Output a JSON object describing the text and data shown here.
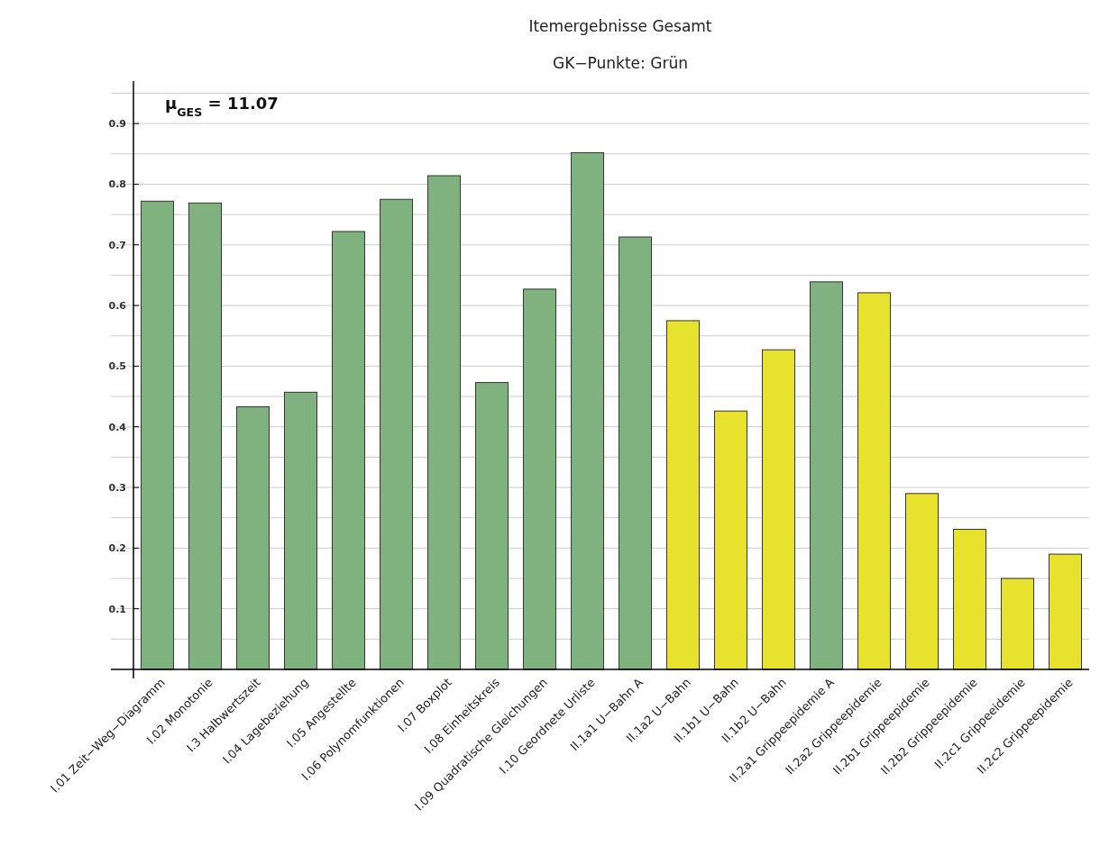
{
  "chart_data": {
    "type": "bar",
    "title": "Itemergebnisse Gesamt",
    "subtitle": "GK−Punkte: Grün",
    "annotations": [
      "μ$_{GES}$ = 11.07"
    ],
    "categories": [
      "I.01 Zeit−Weg−Diagramm",
      "I.02 Monotonie",
      "I.3 Halbwertszeit",
      "I.04 Lagebeziehung",
      "I.05 Angestellte",
      "I.06 Polynomfunktionen",
      "I.07 Boxplot",
      "I.08 Einheitskreis",
      "I.09 Quadratische Gleichungen",
      "I.10 Geordnete Urliste",
      "II.1a1 U−Bahn A",
      "II.1a2 U−Bahn",
      "II.1b1 U−Bahn",
      "II.1b2 U−Bahn",
      "II.2a1 Grippeepidemie A",
      "II.2a2 Grippeepidemie",
      "II.2b1 Grippeepidemie",
      "II.2b2 Grippeepidemie",
      "II.2c1 Grippeeidemie",
      "II.2c2 Grippeepidemie"
    ],
    "values": [
      0.772,
      0.769,
      0.433,
      0.457,
      0.722,
      0.775,
      0.814,
      0.473,
      0.627,
      0.852,
      0.713,
      0.575,
      0.426,
      0.527,
      0.639,
      0.621,
      0.29,
      0.231,
      0.15,
      0.19
    ],
    "colors": [
      "#7fb27f",
      "#7fb27f",
      "#7fb27f",
      "#7fb27f",
      "#7fb27f",
      "#7fb27f",
      "#7fb27f",
      "#7fb27f",
      "#7fb27f",
      "#7fb27f",
      "#7fb27f",
      "#e6e22e",
      "#e6e22e",
      "#e6e22e",
      "#7fb27f",
      "#e6e22e",
      "#e6e22e",
      "#e6e22e",
      "#e6e22e",
      "#e6e22e"
    ],
    "ylim": [
      0,
      0.97
    ],
    "yticks": [
      {
        "value": 0.05,
        "label": null
      },
      0.1,
      {
        "value": 0.15,
        "label": null
      },
      0.2,
      {
        "value": 0.25,
        "label": null
      },
      0.3,
      {
        "value": 0.35,
        "label": null
      },
      0.4,
      {
        "value": 0.45,
        "label": null
      },
      0.5,
      {
        "value": 0.55,
        "label": null
      },
      0.6,
      {
        "value": 0.65,
        "label": null
      },
      0.7,
      {
        "value": 0.75,
        "label": null
      },
      0.8,
      {
        "value": 0.85,
        "label": null
      },
      0.9,
      {
        "value": 0.95,
        "label": null
      }
    ],
    "grid": "y"
  }
}
